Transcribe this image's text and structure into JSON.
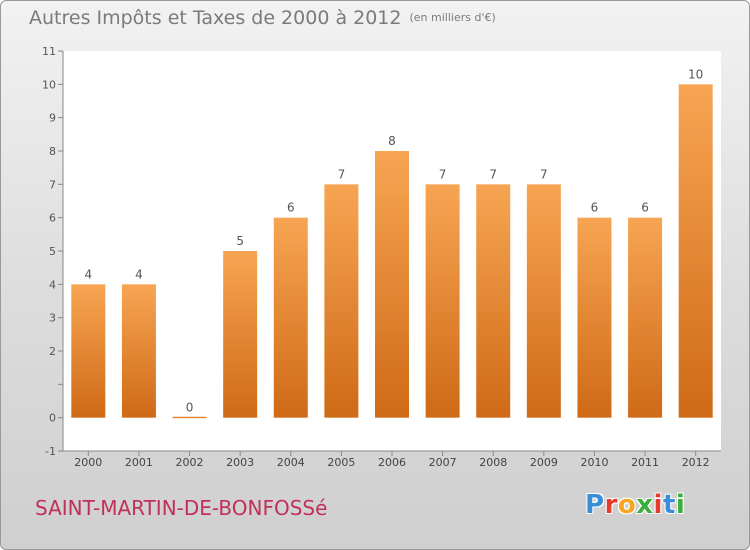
{
  "header": {
    "title": "Autres Impôts et Taxes de 2000 à 2012",
    "unit": "(en milliers d'€)"
  },
  "footer": {
    "commune": "SAINT-MARTIN-DE-BONFOSSé",
    "logo_letters": [
      "P",
      "r",
      "o",
      "x",
      "i",
      "t",
      "i"
    ],
    "logo_colors": [
      "#3a8ed8",
      "#e53b2c",
      "#f5a623",
      "#3aae3a",
      "#e53b2c",
      "#3a8ed8",
      "#3aae3a"
    ]
  },
  "chart_data": {
    "type": "bar",
    "title": "Autres Impôts et Taxes de 2000 à 2012",
    "subtitle": "(en milliers d'€)",
    "xlabel": "",
    "ylabel": "",
    "categories": [
      "2000",
      "2001",
      "2002",
      "2003",
      "2004",
      "2005",
      "2006",
      "2007",
      "2008",
      "2009",
      "2010",
      "2011",
      "2012"
    ],
    "values": [
      4,
      4,
      0,
      5,
      6,
      7,
      8,
      7,
      7,
      7,
      6,
      6,
      10
    ],
    "data_labels": [
      "4",
      "4",
      "0",
      "5",
      "6",
      "7",
      "8",
      "7",
      "7",
      "7",
      "6",
      "6",
      "10"
    ],
    "yticks": [
      -1,
      0,
      1,
      2,
      3,
      4,
      5,
      6,
      7,
      8,
      9,
      10,
      11
    ],
    "ytick_labels": [
      "-1",
      "0",
      "",
      "2",
      "3",
      "4",
      "5",
      "6",
      "7",
      "8",
      "9",
      "10",
      "11"
    ],
    "ylim": [
      -1,
      11
    ],
    "grid": false,
    "bar_color_top": "#f7a553",
    "bar_color_bottom": "#cf6a16"
  }
}
